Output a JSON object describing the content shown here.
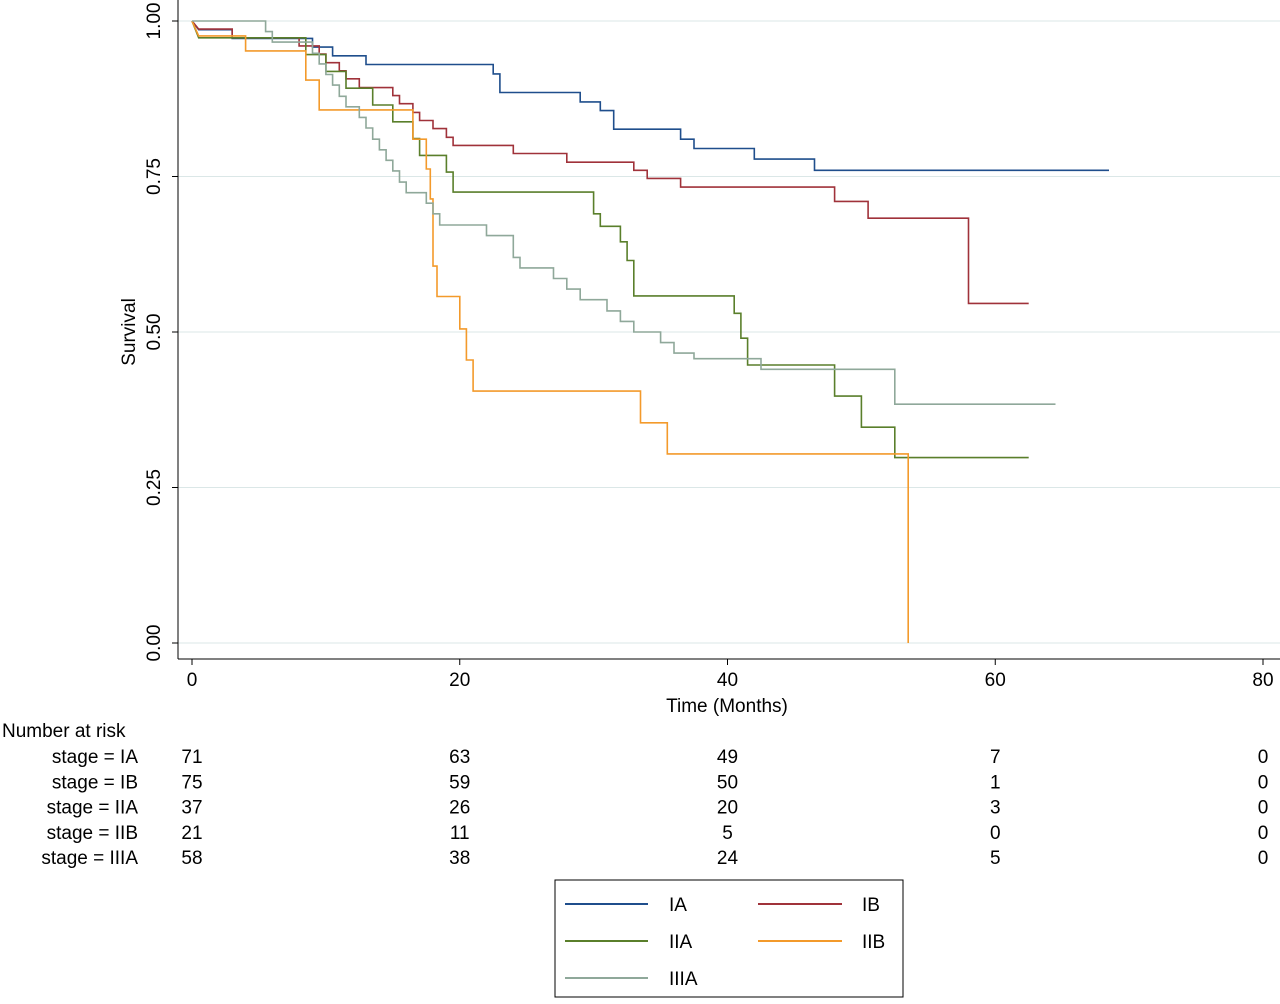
{
  "chart_data": {
    "type": "line",
    "title": "",
    "xlabel": "Time (Months)",
    "ylabel": "Survival",
    "xlim": [
      0,
      80
    ],
    "ylim": [
      0,
      1
    ],
    "x_ticks": [
      "0",
      "20",
      "40",
      "60",
      "80"
    ],
    "y_ticks": [
      "0.00",
      "0.25",
      "0.50",
      "0.75",
      "1.00"
    ],
    "grid": "horizontal",
    "legend": "bottom-center",
    "series": [
      {
        "name": "IA",
        "color": "#1F4E8C",
        "points": [
          [
            0,
            1.0
          ],
          [
            0.5,
            0.986
          ],
          [
            3,
            0.986
          ],
          [
            3,
            0.972
          ],
          [
            9,
            0.972
          ],
          [
            9,
            0.958
          ],
          [
            10.5,
            0.958
          ],
          [
            10.5,
            0.944
          ],
          [
            13,
            0.944
          ],
          [
            13,
            0.93
          ],
          [
            22.5,
            0.93
          ],
          [
            22.5,
            0.915
          ],
          [
            23,
            0.915
          ],
          [
            23,
            0.885
          ],
          [
            29,
            0.885
          ],
          [
            29,
            0.87
          ],
          [
            30.5,
            0.87
          ],
          [
            30.5,
            0.856
          ],
          [
            31.5,
            0.856
          ],
          [
            31.5,
            0.826
          ],
          [
            36.5,
            0.826
          ],
          [
            36.5,
            0.81
          ],
          [
            37.5,
            0.81
          ],
          [
            37.5,
            0.795
          ],
          [
            42,
            0.795
          ],
          [
            42,
            0.778
          ],
          [
            46.5,
            0.778
          ],
          [
            46.5,
            0.76
          ],
          [
            68.5,
            0.76
          ]
        ]
      },
      {
        "name": "IB",
        "color": "#A0323A",
        "points": [
          [
            0,
            1.0
          ],
          [
            0.5,
            0.987
          ],
          [
            3,
            0.987
          ],
          [
            3,
            0.973
          ],
          [
            8,
            0.973
          ],
          [
            8,
            0.96
          ],
          [
            9.5,
            0.96
          ],
          [
            9.5,
            0.947
          ],
          [
            10,
            0.947
          ],
          [
            10,
            0.933
          ],
          [
            11,
            0.933
          ],
          [
            11,
            0.92
          ],
          [
            11.5,
            0.92
          ],
          [
            11.5,
            0.907
          ],
          [
            12.5,
            0.907
          ],
          [
            12.5,
            0.893
          ],
          [
            15,
            0.893
          ],
          [
            15,
            0.88
          ],
          [
            15.5,
            0.88
          ],
          [
            15.5,
            0.867
          ],
          [
            16.5,
            0.867
          ],
          [
            16.5,
            0.853
          ],
          [
            17,
            0.853
          ],
          [
            17,
            0.84
          ],
          [
            18,
            0.84
          ],
          [
            18,
            0.827
          ],
          [
            19,
            0.827
          ],
          [
            19,
            0.813
          ],
          [
            19.5,
            0.813
          ],
          [
            19.5,
            0.8
          ],
          [
            24,
            0.8
          ],
          [
            24,
            0.787
          ],
          [
            28,
            0.787
          ],
          [
            28,
            0.773
          ],
          [
            33,
            0.773
          ],
          [
            33,
            0.76
          ],
          [
            34,
            0.76
          ],
          [
            34,
            0.747
          ],
          [
            36.5,
            0.747
          ],
          [
            36.5,
            0.733
          ],
          [
            48,
            0.733
          ],
          [
            48,
            0.71
          ],
          [
            50.5,
            0.71
          ],
          [
            50.5,
            0.683
          ],
          [
            58,
            0.683
          ],
          [
            58,
            0.546
          ],
          [
            62.5,
            0.546
          ]
        ]
      },
      {
        "name": "IIA",
        "color": "#5A7F2B",
        "points": [
          [
            0,
            1.0
          ],
          [
            0.5,
            0.973
          ],
          [
            8.5,
            0.973
          ],
          [
            8.5,
            0.946
          ],
          [
            10,
            0.946
          ],
          [
            10,
            0.919
          ],
          [
            11.5,
            0.919
          ],
          [
            11.5,
            0.892
          ],
          [
            13.5,
            0.892
          ],
          [
            13.5,
            0.865
          ],
          [
            15,
            0.865
          ],
          [
            15,
            0.838
          ],
          [
            16.5,
            0.838
          ],
          [
            16.5,
            0.811
          ],
          [
            17,
            0.811
          ],
          [
            17,
            0.784
          ],
          [
            19,
            0.784
          ],
          [
            19,
            0.757
          ],
          [
            19.5,
            0.757
          ],
          [
            19.5,
            0.725
          ],
          [
            30,
            0.725
          ],
          [
            30,
            0.69
          ],
          [
            30.5,
            0.69
          ],
          [
            30.5,
            0.67
          ],
          [
            32,
            0.67
          ],
          [
            32,
            0.645
          ],
          [
            32.5,
            0.645
          ],
          [
            32.5,
            0.615
          ],
          [
            33,
            0.615
          ],
          [
            33,
            0.558
          ],
          [
            40.5,
            0.558
          ],
          [
            40.5,
            0.53
          ],
          [
            41,
            0.53
          ],
          [
            41,
            0.49
          ],
          [
            41.5,
            0.49
          ],
          [
            41.5,
            0.447
          ],
          [
            48,
            0.447
          ],
          [
            48,
            0.397
          ],
          [
            50,
            0.397
          ],
          [
            50,
            0.347
          ],
          [
            52.5,
            0.347
          ],
          [
            52.5,
            0.298
          ],
          [
            62.5,
            0.298
          ]
        ]
      },
      {
        "name": "IIB",
        "color": "#F39A2B",
        "points": [
          [
            0,
            1.0
          ],
          [
            0.5,
            0.976
          ],
          [
            4,
            0.976
          ],
          [
            4,
            0.952
          ],
          [
            8.5,
            0.952
          ],
          [
            8.5,
            0.905
          ],
          [
            9.5,
            0.905
          ],
          [
            9.5,
            0.857
          ],
          [
            16.5,
            0.857
          ],
          [
            16.5,
            0.81
          ],
          [
            17.5,
            0.81
          ],
          [
            17.5,
            0.762
          ],
          [
            17.8,
            0.762
          ],
          [
            17.8,
            0.714
          ],
          [
            18,
            0.714
          ],
          [
            18,
            0.606
          ],
          [
            18.3,
            0.606
          ],
          [
            18.3,
            0.557
          ],
          [
            20,
            0.557
          ],
          [
            20,
            0.505
          ],
          [
            20.5,
            0.505
          ],
          [
            20.5,
            0.455
          ],
          [
            21,
            0.455
          ],
          [
            21,
            0.405
          ],
          [
            33.5,
            0.405
          ],
          [
            33.5,
            0.354
          ],
          [
            35.5,
            0.354
          ],
          [
            35.5,
            0.304
          ],
          [
            53.5,
            0.304
          ],
          [
            53.5,
            0.0
          ]
        ]
      },
      {
        "name": "IIIA",
        "color": "#8FA89A",
        "points": [
          [
            0,
            1.0
          ],
          [
            5.5,
            1.0
          ],
          [
            5.5,
            0.983
          ],
          [
            6,
            0.983
          ],
          [
            6,
            0.966
          ],
          [
            9,
            0.966
          ],
          [
            9,
            0.948
          ],
          [
            9.5,
            0.948
          ],
          [
            9.5,
            0.931
          ],
          [
            10,
            0.931
          ],
          [
            10,
            0.914
          ],
          [
            10.5,
            0.914
          ],
          [
            10.5,
            0.897
          ],
          [
            11,
            0.897
          ],
          [
            11,
            0.879
          ],
          [
            11.5,
            0.879
          ],
          [
            11.5,
            0.862
          ],
          [
            12.5,
            0.862
          ],
          [
            12.5,
            0.845
          ],
          [
            13,
            0.845
          ],
          [
            13,
            0.828
          ],
          [
            13.5,
            0.828
          ],
          [
            13.5,
            0.81
          ],
          [
            14,
            0.81
          ],
          [
            14,
            0.793
          ],
          [
            14.5,
            0.793
          ],
          [
            14.5,
            0.776
          ],
          [
            15,
            0.776
          ],
          [
            15,
            0.759
          ],
          [
            15.5,
            0.759
          ],
          [
            15.5,
            0.741
          ],
          [
            16,
            0.741
          ],
          [
            16,
            0.724
          ],
          [
            17.5,
            0.724
          ],
          [
            17.5,
            0.707
          ],
          [
            18,
            0.707
          ],
          [
            18,
            0.69
          ],
          [
            18.5,
            0.69
          ],
          [
            18.5,
            0.672
          ],
          [
            22,
            0.672
          ],
          [
            22,
            0.655
          ],
          [
            24,
            0.655
          ],
          [
            24,
            0.638
          ],
          [
            24,
            0.62
          ],
          [
            24.5,
            0.62
          ],
          [
            24.5,
            0.603
          ],
          [
            27,
            0.603
          ],
          [
            27,
            0.586
          ],
          [
            28,
            0.586
          ],
          [
            28,
            0.569
          ],
          [
            29,
            0.569
          ],
          [
            29,
            0.552
          ],
          [
            31,
            0.552
          ],
          [
            31,
            0.534
          ],
          [
            32,
            0.534
          ],
          [
            32,
            0.517
          ],
          [
            33,
            0.517
          ],
          [
            33,
            0.5
          ],
          [
            35,
            0.5
          ],
          [
            35,
            0.483
          ],
          [
            36,
            0.483
          ],
          [
            36,
            0.466
          ],
          [
            37.5,
            0.466
          ],
          [
            37.5,
            0.457
          ],
          [
            42.5,
            0.457
          ],
          [
            42.5,
            0.44
          ],
          [
            52.5,
            0.44
          ],
          [
            52.5,
            0.384
          ],
          [
            64.5,
            0.384
          ]
        ]
      }
    ],
    "risk_table": {
      "title": "Number at risk",
      "rows": [
        {
          "label": "stage = IA",
          "values": [
            "71",
            "63",
            "49",
            "7",
            "0"
          ]
        },
        {
          "label": "stage = IB",
          "values": [
            "75",
            "59",
            "50",
            "1",
            "0"
          ]
        },
        {
          "label": "stage = IIA",
          "values": [
            "37",
            "26",
            "20",
            "3",
            "0"
          ]
        },
        {
          "label": "stage = IIB",
          "values": [
            "21",
            "11",
            "5",
            "0",
            "0"
          ]
        },
        {
          "label": "stage = IIIA",
          "values": [
            "58",
            "38",
            "24",
            "5",
            "0"
          ]
        }
      ]
    }
  }
}
